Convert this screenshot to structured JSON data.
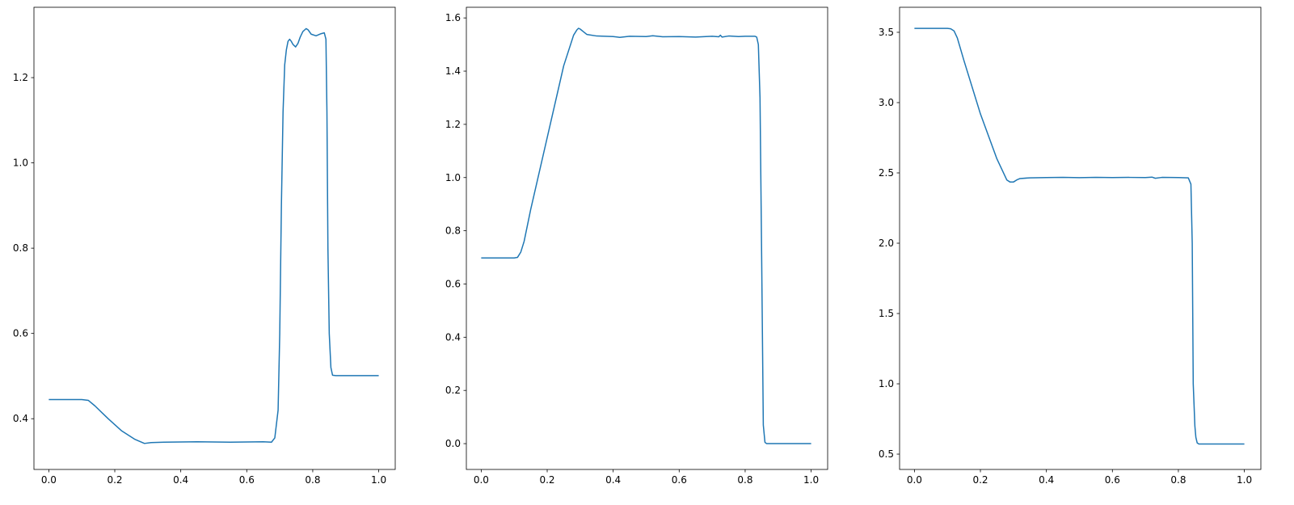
{
  "chart_data": [
    {
      "type": "line",
      "title": "",
      "xlabel": "",
      "ylabel": "",
      "xlim": [
        -0.045,
        1.05
      ],
      "ylim": [
        0.281,
        1.365
      ],
      "xticks": [
        "0.0",
        "0.2",
        "0.4",
        "0.6",
        "0.8",
        "1.0"
      ],
      "yticks": [
        "0.4",
        "0.6",
        "0.8",
        "1.0",
        "1.2"
      ],
      "grid": false,
      "color": "#1f77b4",
      "series": [
        {
          "x": [
            0.0,
            0.1,
            0.12,
            0.14,
            0.18,
            0.22,
            0.26,
            0.29,
            0.31,
            0.35,
            0.45,
            0.55,
            0.65,
            0.675,
            0.685,
            0.695,
            0.7,
            0.705,
            0.71,
            0.715,
            0.72,
            0.725,
            0.73,
            0.735,
            0.74,
            0.748,
            0.755,
            0.762,
            0.77,
            0.78,
            0.786,
            0.795,
            0.81,
            0.825,
            0.835,
            0.84,
            0.843,
            0.846,
            0.85,
            0.855,
            0.86,
            0.87,
            0.9,
            1.0
          ],
          "y": [
            0.445,
            0.445,
            0.443,
            0.43,
            0.4,
            0.372,
            0.352,
            0.342,
            0.344,
            0.345,
            0.346,
            0.345,
            0.346,
            0.345,
            0.355,
            0.42,
            0.6,
            0.9,
            1.12,
            1.23,
            1.265,
            1.285,
            1.29,
            1.285,
            1.278,
            1.272,
            1.28,
            1.295,
            1.308,
            1.315,
            1.312,
            1.302,
            1.298,
            1.303,
            1.305,
            1.29,
            1.12,
            0.8,
            0.6,
            0.52,
            0.502,
            0.501,
            0.501,
            0.501
          ]
        }
      ]
    },
    {
      "type": "line",
      "title": "",
      "xlabel": "",
      "ylabel": "",
      "xlim": [
        -0.045,
        1.05
      ],
      "ylim": [
        -0.097,
        1.64
      ],
      "xticks": [
        "0.0",
        "0.2",
        "0.4",
        "0.6",
        "0.8",
        "1.0"
      ],
      "yticks": [
        "0.0",
        "0.2",
        "0.4",
        "0.6",
        "0.8",
        "1.0",
        "1.2",
        "1.4",
        "1.6"
      ],
      "grid": false,
      "color": "#1f77b4",
      "series": [
        {
          "x": [
            0.0,
            0.1,
            0.11,
            0.12,
            0.13,
            0.15,
            0.2,
            0.25,
            0.28,
            0.29,
            0.295,
            0.3,
            0.31,
            0.32,
            0.35,
            0.4,
            0.42,
            0.45,
            0.5,
            0.52,
            0.55,
            0.6,
            0.65,
            0.7,
            0.72,
            0.725,
            0.73,
            0.75,
            0.78,
            0.8,
            0.83,
            0.835,
            0.84,
            0.845,
            0.85,
            0.855,
            0.86,
            0.865,
            0.87,
            0.9,
            1.0
          ],
          "y": [
            0.698,
            0.698,
            0.7,
            0.72,
            0.76,
            0.88,
            1.15,
            1.42,
            1.535,
            1.555,
            1.561,
            1.558,
            1.548,
            1.538,
            1.532,
            1.53,
            1.527,
            1.531,
            1.53,
            1.533,
            1.529,
            1.53,
            1.528,
            1.531,
            1.529,
            1.535,
            1.528,
            1.532,
            1.53,
            1.531,
            1.531,
            1.528,
            1.5,
            1.3,
            0.7,
            0.07,
            0.005,
            0.0,
            0.0,
            0.0,
            0.0
          ]
        }
      ]
    },
    {
      "type": "line",
      "title": "",
      "xlabel": "",
      "ylabel": "",
      "xlim": [
        -0.045,
        1.05
      ],
      "ylim": [
        0.391,
        3.678
      ],
      "xticks": [
        "0.0",
        "0.2",
        "0.4",
        "0.6",
        "0.8",
        "1.0"
      ],
      "yticks": [
        "0.5",
        "1.0",
        "1.5",
        "2.0",
        "2.5",
        "3.0",
        "3.5"
      ],
      "grid": false,
      "color": "#1f77b4",
      "series": [
        {
          "x": [
            0.0,
            0.1,
            0.11,
            0.12,
            0.13,
            0.15,
            0.2,
            0.25,
            0.28,
            0.29,
            0.3,
            0.31,
            0.32,
            0.35,
            0.4,
            0.45,
            0.5,
            0.55,
            0.6,
            0.65,
            0.7,
            0.72,
            0.73,
            0.75,
            0.8,
            0.83,
            0.838,
            0.842,
            0.845,
            0.85,
            0.853,
            0.857,
            0.862,
            0.87,
            0.9,
            1.0
          ],
          "y": [
            3.528,
            3.528,
            3.525,
            3.51,
            3.46,
            3.3,
            2.92,
            2.6,
            2.45,
            2.435,
            2.435,
            2.45,
            2.46,
            2.465,
            2.467,
            2.468,
            2.466,
            2.468,
            2.467,
            2.468,
            2.467,
            2.47,
            2.462,
            2.468,
            2.467,
            2.465,
            2.42,
            2.0,
            1.0,
            0.7,
            0.62,
            0.58,
            0.572,
            0.572,
            0.572,
            0.572
          ]
        }
      ]
    }
  ]
}
